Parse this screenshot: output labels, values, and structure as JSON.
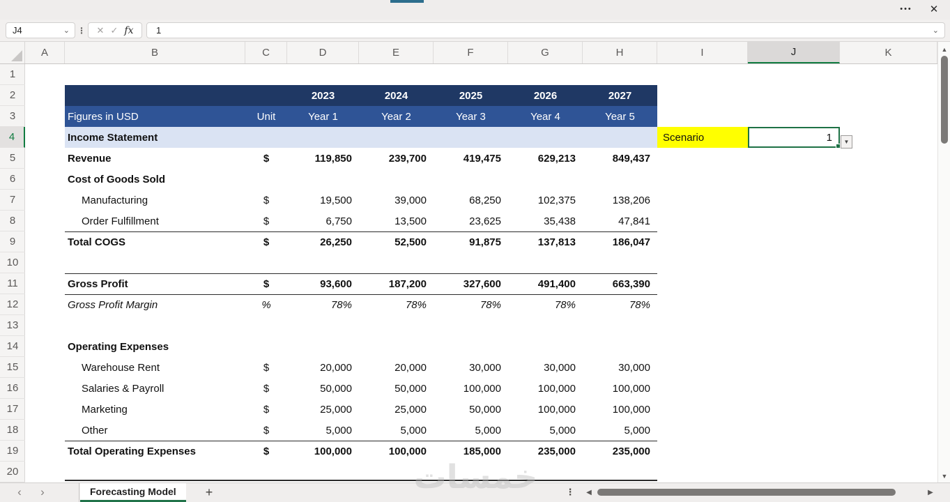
{
  "window": {
    "more_label": "•••",
    "close_label": "✕",
    "accent_bar_color": "#2d6e8d"
  },
  "formula_bar": {
    "name_box_value": "J4",
    "name_box_chevron": "⌄",
    "cancel_icon": "✕",
    "enter_icon": "✓",
    "fx_label": "fx",
    "formula_value": "1",
    "expand_chevron": "⌄"
  },
  "grid": {
    "column_letters": [
      "A",
      "B",
      "C",
      "D",
      "E",
      "F",
      "G",
      "H",
      "I",
      "J",
      "K"
    ],
    "row_count": 20,
    "selected_cell": "J4",
    "selected_column": "J",
    "selected_row": 4
  },
  "sheet": {
    "colors": {
      "header_dark": "#1f3864",
      "header_blue": "#2f5496",
      "section_fill": "#dae3f3",
      "scenario_fill": "#ffff00",
      "selection_green": "#1e7145"
    },
    "year_header": [
      "2023",
      "2024",
      "2025",
      "2026",
      "2027"
    ],
    "subheader": {
      "label": "Figures in USD",
      "unit_label": "Unit",
      "year_labels": [
        "Year 1",
        "Year 2",
        "Year 3",
        "Year 4",
        "Year 5"
      ]
    },
    "section_title": "Income Statement",
    "scenario": {
      "label": "Scenario",
      "value": "1"
    },
    "rows": [
      {
        "r": 5,
        "label": "Revenue",
        "unit": "$",
        "values": [
          "119,850",
          "239,700",
          "419,475",
          "629,213",
          "849,437"
        ],
        "bold": true
      },
      {
        "r": 6,
        "label": "Cost of Goods Sold",
        "unit": "",
        "values": [],
        "bold": true
      },
      {
        "r": 7,
        "label": "Manufacturing",
        "unit": "$",
        "values": [
          "19,500",
          "39,000",
          "68,250",
          "102,375",
          "138,206"
        ],
        "indent": true
      },
      {
        "r": 8,
        "label": "Order Fulfillment",
        "unit": "$",
        "values": [
          "6,750",
          "13,500",
          "23,625",
          "35,438",
          "47,841"
        ],
        "indent": true
      },
      {
        "r": 9,
        "label": "Total COGS",
        "unit": "$",
        "values": [
          "26,250",
          "52,500",
          "91,875",
          "137,813",
          "186,047"
        ],
        "bold": true,
        "border_top": true
      },
      {
        "r": 11,
        "label": "Gross Profit",
        "unit": "$",
        "values": [
          "93,600",
          "187,200",
          "327,600",
          "491,400",
          "663,390"
        ],
        "bold": true,
        "border_top": true,
        "border_bottom": true
      },
      {
        "r": 12,
        "label": "Gross Profit Margin",
        "unit": "%",
        "values": [
          "78%",
          "78%",
          "78%",
          "78%",
          "78%"
        ],
        "italic": true
      },
      {
        "r": 14,
        "label": "Operating Expenses",
        "unit": "",
        "values": [],
        "bold": true
      },
      {
        "r": 15,
        "label": "Warehouse Rent",
        "unit": "$",
        "values": [
          "20,000",
          "20,000",
          "30,000",
          "30,000",
          "30,000"
        ],
        "indent": true
      },
      {
        "r": 16,
        "label": "Salaries & Payroll",
        "unit": "$",
        "values": [
          "50,000",
          "50,000",
          "100,000",
          "100,000",
          "100,000"
        ],
        "indent": true
      },
      {
        "r": 17,
        "label": "Marketing",
        "unit": "$",
        "values": [
          "25,000",
          "25,000",
          "50,000",
          "100,000",
          "100,000"
        ],
        "indent": true
      },
      {
        "r": 18,
        "label": "Other",
        "unit": "$",
        "values": [
          "5,000",
          "5,000",
          "5,000",
          "5,000",
          "5,000"
        ],
        "indent": true
      },
      {
        "r": 19,
        "label": "Total Operating Expenses",
        "unit": "$",
        "values": [
          "100,000",
          "100,000",
          "185,000",
          "235,000",
          "235,000"
        ],
        "bold": true,
        "border_top": true
      }
    ]
  },
  "tab_bar": {
    "prev_icon": "‹",
    "next_icon": "›",
    "tabs": [
      {
        "label": "Forecasting Model",
        "active": true
      }
    ],
    "add_tab_icon": "+",
    "more_icon": "⋮"
  },
  "scrollbars": {
    "up_icon": "▲",
    "down_icon": "▼",
    "left_icon": "◀",
    "right_icon": "▶"
  },
  "watermark": "خمسات"
}
